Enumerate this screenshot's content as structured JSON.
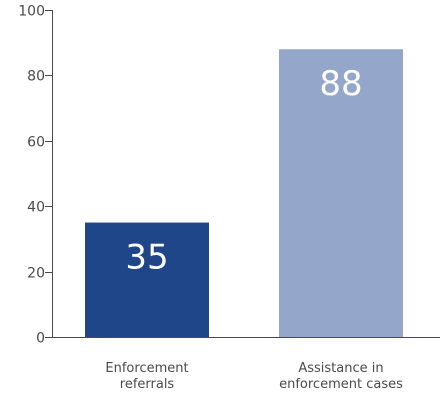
{
  "chart_data": {
    "type": "bar",
    "categories": [
      [
        "Enforcement",
        "referrals"
      ],
      [
        "Assistance in",
        "enforcement cases"
      ]
    ],
    "values": [
      35,
      88
    ],
    "data_labels": [
      "35",
      "88"
    ],
    "bar_colors": [
      "#1f4689",
      "#94a7ca"
    ],
    "ylim": [
      0,
      100
    ],
    "yticks": [
      0,
      20,
      40,
      60,
      80,
      100
    ],
    "ytick_labels": [
      "0",
      "20",
      "40",
      "60",
      "80",
      "100"
    ],
    "grid": false,
    "legend": "none",
    "title": "",
    "xlabel": "",
    "ylabel": ""
  },
  "colors": {
    "axis": "#4a4a4a",
    "text": "#4a4a4a",
    "data_label": "#ffffff"
  }
}
